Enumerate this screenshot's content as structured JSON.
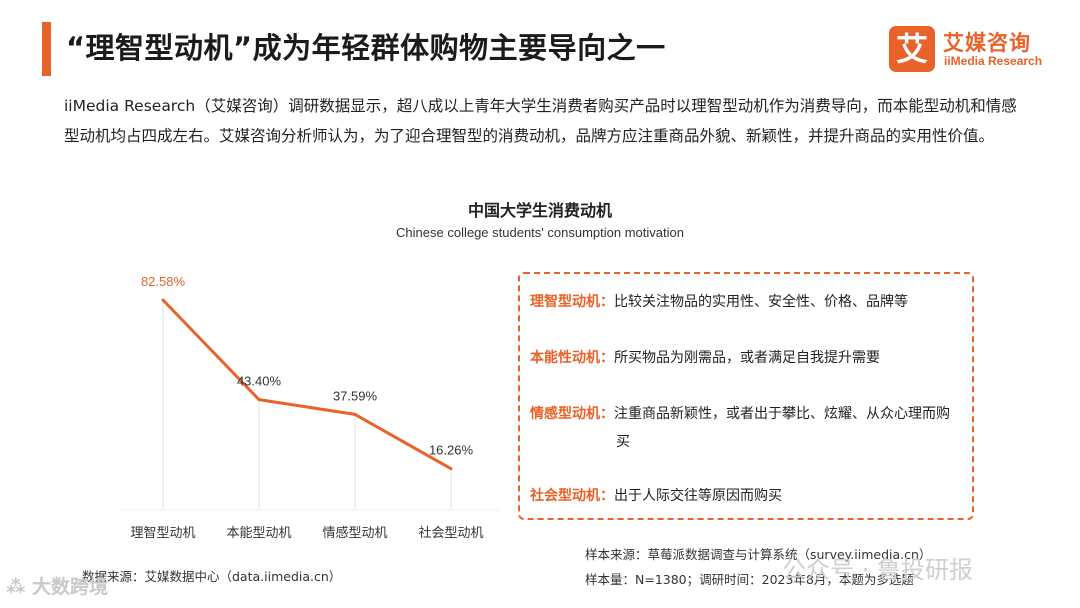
{
  "header": {
    "title": "“理智型动机”成为年轻群体购物主要导向之一",
    "logo_mark": "艾",
    "logo_cn": "艾媒咨询",
    "logo_en": "iiMedia Research"
  },
  "intro": "iiMedia Research（艾媒咨询）调研数据显示，超八成以上青年大学生消费者购买产品时以理智型动机作为消费导向，而本能型动机和情感型动机均占四成左右。艾媒咨询分析师认为，为了迎合理智型的消费动机，品牌方应注重商品外貌、新颖性，并提升商品的实用性价值。",
  "chart_data": {
    "type": "line",
    "title": "中国大学生消费动机",
    "subtitle": "Chinese college students' consumption motivation",
    "categories": [
      "理智型动机",
      "本能型动机",
      "情感型动机",
      "社会型动机"
    ],
    "values": [
      82.58,
      43.4,
      37.59,
      16.26
    ],
    "value_labels": [
      "82.58%",
      "43.40%",
      "37.59%",
      "16.26%"
    ],
    "ylim": [
      0,
      100
    ],
    "colors": {
      "line": "#e8622a",
      "first_label": "#e8622a"
    }
  },
  "legend": [
    {
      "key": "理智型动机：",
      "text": "比较关注物品的实用性、安全性、价格、品牌等"
    },
    {
      "key": "本能性动机：",
      "text": "所买物品为刚需品，或者满足自我提升需要"
    },
    {
      "key": "情感型动机：",
      "text": "注重商品新颖性，或者出于攀比、炫耀、从众心理而购买"
    },
    {
      "key": "社会型动机：",
      "text": "出于人际交往等原因而购买"
    }
  ],
  "sources": {
    "left": "数据来源：艾媒数据中心（data.iimedia.cn）",
    "right_line1": "样本来源：草莓派数据调查与计算系统（survey.iimedia.cn）",
    "right_line2": "样本量：N=1380；调研时间：2023年8月，本题为多选题"
  },
  "watermarks": {
    "left": "⁂ 大数跨境",
    "right": "公众号 · 鲁投研报"
  }
}
